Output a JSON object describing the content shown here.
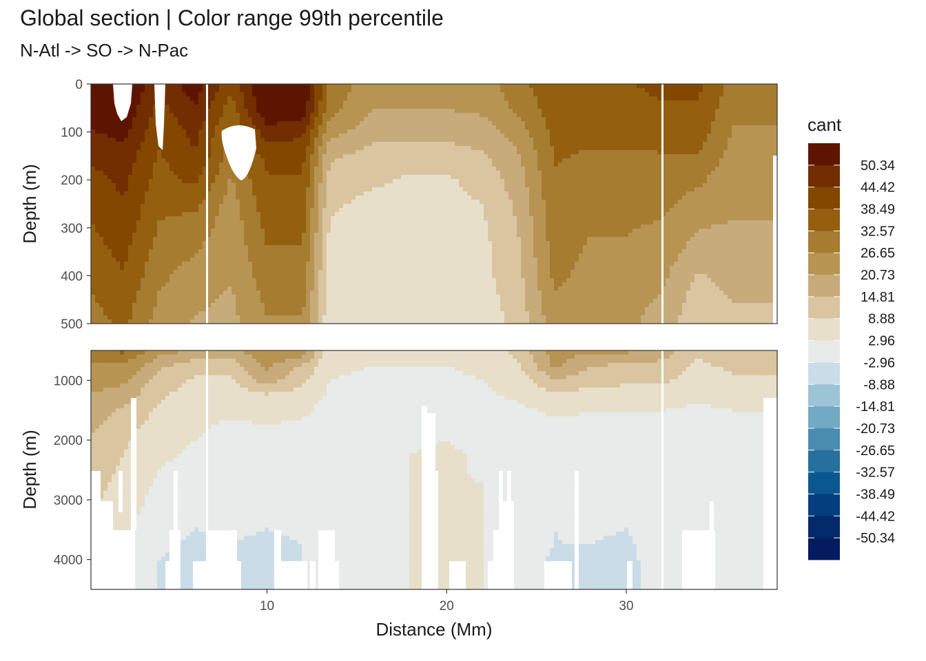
{
  "chart_data": {
    "type": "heatmap",
    "title": "Global section | Color range 99th percentile",
    "subtitle": "N-Atl -> SO -> N-Pac",
    "xlabel": "Distance (Mm)",
    "xlim": [
      0.2,
      38.4
    ],
    "xticks": [
      10,
      20,
      30
    ],
    "panels": [
      {
        "ylabel": "Depth (m)",
        "ylim": [
          0,
          500
        ],
        "yticks": [
          0,
          100,
          200,
          300,
          400,
          500
        ]
      },
      {
        "ylabel": "Depth (m)",
        "ylim": [
          500,
          4500
        ],
        "yticks": [
          1000,
          2000,
          3000,
          4000
        ]
      }
    ],
    "legend": {
      "title": "cant",
      "placement": "right",
      "labels": [
        "50.34",
        "44.42",
        "38.49",
        "32.57",
        "26.65",
        "20.73",
        "14.81",
        "8.88",
        "2.96",
        "-2.96",
        "-8.88",
        "-14.81",
        "-20.73",
        "-26.65",
        "-32.57",
        "-38.49",
        "-44.42",
        "-50.34"
      ],
      "colors": [
        "#5e1500",
        "#722d00",
        "#844700",
        "#94600f",
        "#a67c31",
        "#b89453",
        "#c8ab7b",
        "#dac5a0",
        "#e8dfcb",
        "#e8ebe9",
        "#c9dce7",
        "#9cc3d6",
        "#72a9c3",
        "#4a8db0",
        "#26709e",
        "#0b5890",
        "#053e7e",
        "#032a6a",
        "#051b5f"
      ]
    },
    "depths": [
      0,
      50,
      100,
      150,
      200,
      250,
      300,
      350,
      400,
      450,
      500,
      750,
      1000,
      1250,
      1500,
      1750,
      2000,
      2250,
      2500,
      2750,
      3000,
      3250,
      3500,
      3750,
      4000,
      4250,
      4500
    ],
    "x": [
      0.2,
      2,
      4,
      6,
      8,
      10,
      12,
      13.5,
      16,
      18,
      20,
      22,
      24,
      26,
      28,
      30,
      32,
      34,
      36,
      38.4
    ],
    "values": [
      [
        58,
        58,
        46,
        54,
        40,
        58,
        57,
        31,
        22,
        22,
        22,
        24,
        30,
        38,
        38,
        38,
        40,
        40,
        30,
        30
      ],
      [
        56,
        56,
        42,
        50,
        36,
        56,
        54,
        29,
        21,
        21,
        21,
        22,
        28,
        36,
        36,
        36,
        38,
        38,
        28,
        28
      ],
      [
        50,
        52,
        40,
        46,
        32,
        48,
        46,
        23,
        17,
        17,
        17,
        18,
        24,
        34,
        34,
        34,
        36,
        36,
        26,
        26
      ],
      [
        46,
        48,
        38,
        44,
        30,
        40,
        40,
        16,
        12,
        12,
        12,
        14,
        20,
        33,
        32,
        32,
        32,
        32,
        24,
        24
      ],
      [
        42,
        46,
        36,
        40,
        26,
        38,
        38,
        12,
        10,
        8,
        8,
        11,
        18,
        32,
        30,
        30,
        30,
        28,
        22,
        22
      ],
      [
        40,
        44,
        34,
        34,
        24,
        36,
        36,
        10,
        7,
        7,
        7,
        9,
        16,
        31,
        28,
        28,
        28,
        24,
        22,
        22
      ],
      [
        38,
        42,
        32,
        30,
        23,
        34,
        34,
        8,
        6,
        6,
        6,
        8,
        15,
        30,
        27,
        27,
        26,
        21,
        20,
        20
      ],
      [
        36,
        40,
        30,
        27,
        22,
        32,
        32,
        7,
        6,
        6,
        6,
        7,
        14,
        29,
        26,
        26,
        24,
        18,
        19,
        19
      ],
      [
        34,
        38,
        28,
        24,
        21,
        30,
        30,
        6,
        5,
        5,
        5,
        7,
        13,
        28,
        25,
        25,
        22,
        14,
        17,
        17
      ],
      [
        32,
        36,
        26,
        22,
        20,
        28,
        28,
        5,
        5,
        5,
        5,
        6,
        12,
        26,
        24,
        23,
        20,
        12,
        15,
        15
      ],
      [
        30,
        34,
        24,
        20,
        19,
        26,
        26,
        4,
        4,
        4,
        4,
        5,
        11,
        24,
        22,
        22,
        18,
        10,
        14,
        14
      ],
      [
        26,
        26,
        16,
        12,
        12,
        22,
        14,
        4,
        3,
        3,
        3,
        4,
        8,
        22,
        15,
        14,
        13,
        8,
        10,
        10
      ],
      [
        24,
        22,
        12,
        8,
        8,
        18,
        10,
        3,
        2,
        2,
        2,
        3,
        6,
        14,
        12,
        10,
        10,
        6,
        8,
        8
      ],
      [
        20,
        18,
        10,
        6,
        6,
        8,
        6,
        2,
        1,
        1,
        1,
        2,
        4,
        8,
        6,
        6,
        6,
        4,
        6,
        6
      ],
      [
        18,
        14,
        8,
        5,
        4,
        5,
        4,
        1,
        1,
        1,
        1,
        1,
        2,
        4,
        3,
        3,
        3,
        2,
        3,
        3
      ],
      [
        16,
        12,
        6,
        4,
        2,
        3,
        2,
        1,
        0,
        1,
        2,
        1,
        1,
        2,
        2,
        2,
        2,
        1,
        1,
        1
      ],
      [
        14,
        10,
        5,
        3,
        1,
        2,
        1,
        0,
        0,
        2,
        3,
        1,
        0,
        1,
        1,
        1,
        1,
        1,
        1,
        1
      ],
      [
        13,
        9,
        4,
        2,
        0,
        1,
        0,
        0,
        0,
        3,
        4,
        2,
        0,
        0,
        0,
        0,
        0,
        0,
        0,
        0
      ],
      [
        12,
        8,
        3,
        1,
        0,
        0,
        0,
        0,
        1,
        3,
        4,
        2,
        0,
        0,
        0,
        0,
        0,
        0,
        0,
        0
      ],
      [
        11,
        7,
        2,
        0,
        0,
        0,
        0,
        0,
        2,
        3,
        4,
        3,
        1,
        0,
        0,
        0,
        0,
        0,
        0,
        0
      ],
      [
        10,
        6,
        1,
        -1,
        0,
        -1,
        -1,
        0,
        2,
        3,
        4,
        3,
        1,
        -1,
        0,
        -1,
        0,
        0,
        0,
        0
      ],
      [
        9,
        5,
        0,
        -2,
        -1,
        -2,
        -1,
        0,
        2,
        3,
        4,
        3,
        1,
        -2,
        -1,
        -1,
        0,
        0,
        0,
        0
      ],
      [
        8,
        4,
        -1,
        -3,
        -2,
        -3,
        -2,
        0,
        2,
        3,
        4,
        3,
        1,
        -3,
        -2,
        -3,
        0,
        0,
        0,
        0
      ],
      [
        7,
        3,
        -2,
        -4,
        -3,
        -4,
        -3,
        0,
        2,
        3,
        4,
        3,
        1,
        -3,
        -3,
        -4,
        0,
        0,
        0,
        0
      ],
      [
        6,
        2,
        -3,
        -4,
        -3,
        -4,
        -3,
        0,
        2,
        3,
        4,
        3,
        1,
        -4,
        -3,
        -4,
        -1,
        0,
        0,
        0
      ],
      [
        5,
        1,
        -3,
        -4,
        -3,
        -4,
        -3,
        0,
        2,
        3,
        4,
        3,
        1,
        -4,
        -3,
        -4,
        -1,
        0,
        0,
        0
      ],
      [
        5,
        1,
        -3,
        -4,
        -3,
        -4,
        -3,
        0,
        2,
        3,
        4,
        3,
        1,
        -4,
        -3,
        -4,
        -1,
        0,
        0,
        0
      ]
    ]
  }
}
